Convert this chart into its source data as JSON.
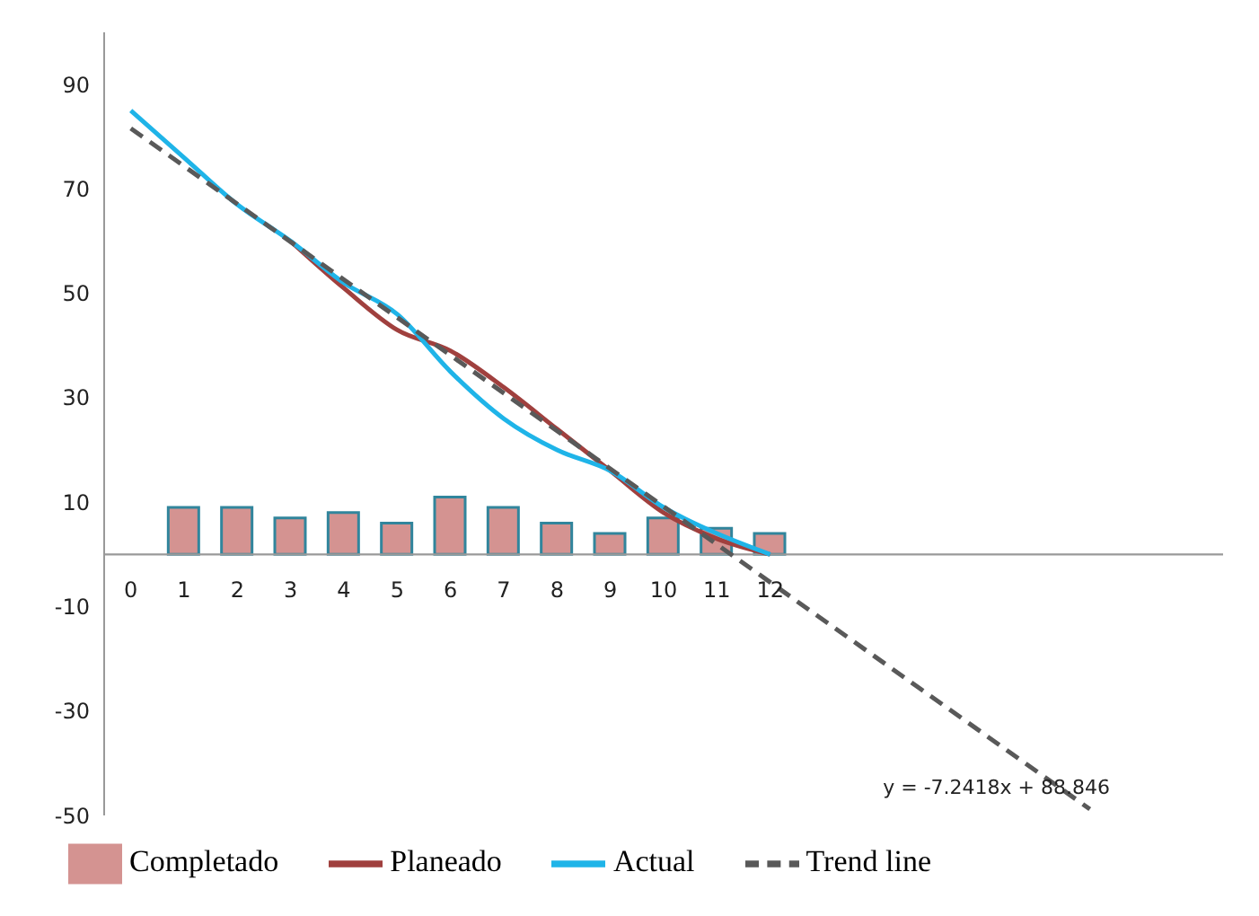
{
  "chart_data": {
    "type": "line",
    "x": [
      0,
      1,
      2,
      3,
      4,
      5,
      6,
      7,
      8,
      9,
      10,
      11,
      12
    ],
    "series": [
      {
        "name": "Completado",
        "type": "bar",
        "color": "#d49391",
        "values": [
          null,
          9,
          9,
          7,
          8,
          6,
          11,
          9,
          6,
          4,
          7,
          5,
          4
        ]
      },
      {
        "name": "Planeado",
        "color": "#a0403e",
        "values": [
          null,
          null,
          null,
          60,
          51,
          43,
          39,
          32,
          24,
          16,
          8,
          3,
          0
        ]
      },
      {
        "name": "Actual",
        "color": "#1fb4e8",
        "values": [
          85,
          76,
          67,
          60,
          52,
          46,
          35,
          26,
          20,
          16,
          9,
          4,
          0
        ]
      },
      {
        "name": "Trend line",
        "color": "#595959",
        "line_style": "dashed",
        "x": [
          0,
          18
        ],
        "values": [
          81.6,
          -48.8
        ]
      }
    ],
    "xlim": [
      -0.5,
      20.5
    ],
    "xticks": [
      0,
      1,
      2,
      3,
      4,
      5,
      6,
      7,
      8,
      9,
      10,
      11,
      12
    ],
    "ylim": [
      -50,
      100
    ],
    "yticks": [
      -50,
      -30,
      -10,
      10,
      30,
      50,
      70,
      90
    ],
    "annotations": [
      "y = -7.2418x + 88.846"
    ],
    "legend": "bottom",
    "grid": false,
    "marker": "none"
  }
}
